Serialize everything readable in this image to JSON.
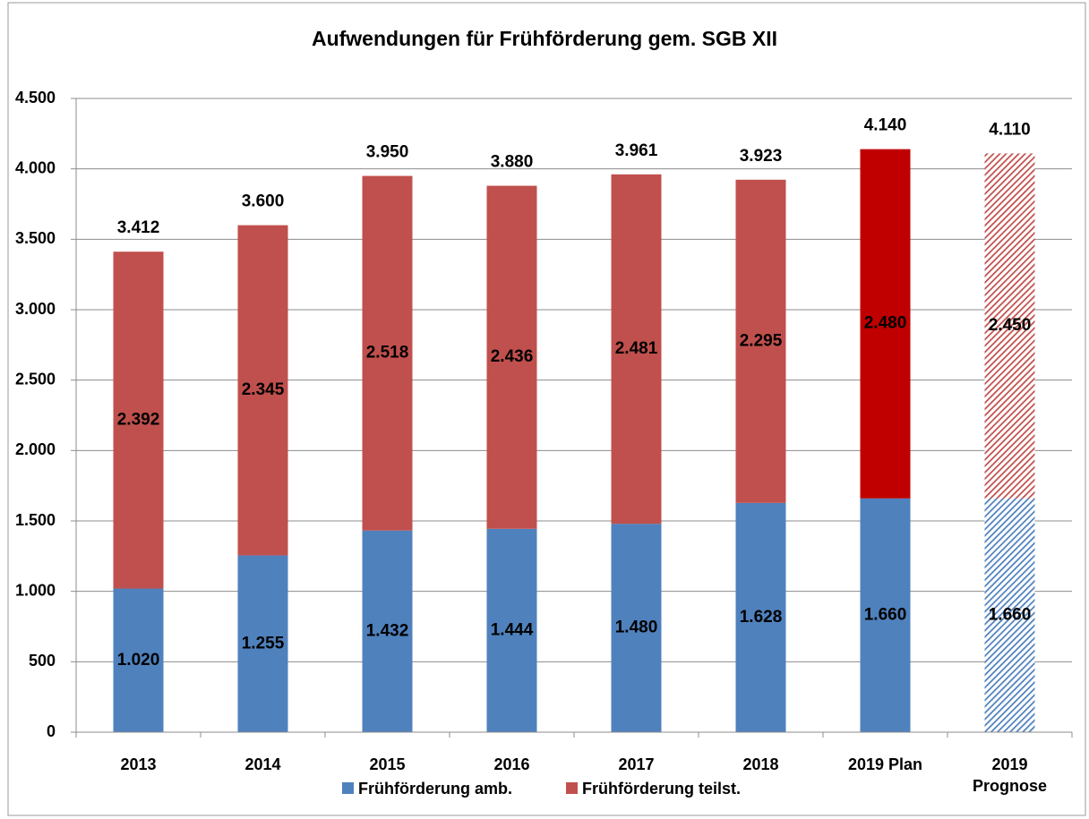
{
  "chart_data": {
    "type": "stacked-bar",
    "title": "Aufwendungen für Frühförderung gem. SGB XII",
    "categories": [
      "2013",
      "2014",
      "2015",
      "2016",
      "2017",
      "2018",
      "2019 Plan",
      "2019 Prognose"
    ],
    "series": [
      {
        "name": "Frühförderung amb.",
        "color": "#4f81bd",
        "colors": [
          "#4f81bd",
          "#4f81bd",
          "#4f81bd",
          "#4f81bd",
          "#4f81bd",
          "#4f81bd",
          "#4f81bd",
          "#4f81bd"
        ],
        "values": [
          1020,
          1255,
          1432,
          1444,
          1480,
          1628,
          1660,
          1660
        ],
        "value_labels": [
          "1.020",
          "1.255",
          "1.432",
          "1.444",
          "1.480",
          "1.628",
          "1.660",
          "1.660"
        ]
      },
      {
        "name": "Frühförderung teilst.",
        "color": "#c0504d",
        "colors": [
          "#c0504d",
          "#c0504d",
          "#c0504d",
          "#c0504d",
          "#c0504d",
          "#c0504d",
          "#c00000",
          "#c0504d"
        ],
        "values": [
          2392,
          2345,
          2518,
          2436,
          2481,
          2295,
          2480,
          2450
        ],
        "value_labels": [
          "2.392",
          "2.345",
          "2.518",
          "2.436",
          "2.481",
          "2.295",
          "2.480",
          "2.450"
        ]
      }
    ],
    "hatched": [
      false,
      false,
      false,
      false,
      false,
      false,
      false,
      true
    ],
    "totals": {
      "values": [
        3412,
        3600,
        3950,
        3880,
        3961,
        3923,
        4140,
        4110
      ],
      "value_labels": [
        "3.412",
        "3.600",
        "3.950",
        "3.880",
        "3.961",
        "3.923",
        "4.140",
        "4.110"
      ]
    },
    "ylim": [
      0,
      4500
    ],
    "yticks": [
      0,
      500,
      {
        "value": 1000,
        "label": "1.000"
      },
      {
        "value": 1500,
        "label": "1.500"
      },
      {
        "value": 2000,
        "label": "2.000"
      },
      {
        "value": 2500,
        "label": "2.500"
      },
      {
        "value": 3000,
        "label": "3.000"
      },
      {
        "value": 3500,
        "label": "3.500"
      },
      {
        "value": 4000,
        "label": "4.000"
      },
      {
        "value": 4500,
        "label": "4.500"
      }
    ],
    "grid": true,
    "legend": "bottom"
  }
}
